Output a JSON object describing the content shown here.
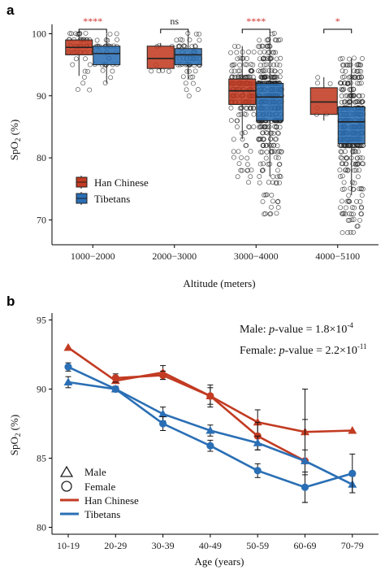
{
  "colors": {
    "han": "#c23b22",
    "tibetan": "#2a6fb5",
    "sig_red": "#d0312d",
    "sig_ns": "#222222"
  },
  "chart_data": [
    {
      "panel_label": "a",
      "type": "box",
      "xlabel": "Altitude (meters)",
      "ylabel_main": "SpO",
      "ylabel_sub": "2",
      "ylabel_unit": " (%)",
      "ylim": [
        66,
        101.5
      ],
      "yticks": [
        70,
        80,
        90,
        100
      ],
      "categories": [
        "1000−2000",
        "2000−3000",
        "3000−4000",
        "4000−5100"
      ],
      "significance": [
        "****",
        "ns",
        "****",
        "*"
      ],
      "legend": {
        "placement": "bottom-left",
        "entries": [
          "Han Chinese",
          "Tibetans"
        ]
      },
      "series": [
        {
          "name": "Han Chinese",
          "color": "#c23b22",
          "boxes": [
            {
              "q1": 96.6,
              "median": 97.8,
              "q3": 99.0,
              "whisker_low": 93.2,
              "whisker_high": 100,
              "points_min": 90,
              "points_max": 100,
              "n": 55
            },
            {
              "q1": 94.4,
              "median": 96.0,
              "q3": 98.0,
              "whisker_low": 94.0,
              "whisker_high": 98.5,
              "points_min": 94,
              "points_max": 98,
              "n": 8
            },
            {
              "q1": 88.6,
              "median": 90.8,
              "q3": 92.7,
              "whisker_low": 83.0,
              "whisker_high": 98.0,
              "points_min": 76,
              "points_max": 98,
              "n": 200
            },
            {
              "q1": 87.0,
              "median": 89.0,
              "q3": 91.3,
              "whisker_low": 86.0,
              "whisker_high": 93.0,
              "points_min": 86,
              "points_max": 93,
              "n": 6
            }
          ]
        },
        {
          "name": "Tibetans",
          "color": "#2a6fb5",
          "boxes": [
            {
              "q1": 95.0,
              "median": 96.8,
              "q3": 98.0,
              "whisker_low": 92.0,
              "whisker_high": 100,
              "points_min": 92,
              "points_max": 100,
              "n": 35
            },
            {
              "q1": 95.0,
              "median": 96.6,
              "q3": 97.6,
              "whisker_low": 92.6,
              "whisker_high": 100,
              "points_min": 90,
              "points_max": 100,
              "n": 60
            },
            {
              "q1": 86.0,
              "median": 89.8,
              "q3": 92.0,
              "whisker_low": 77.0,
              "whisker_high": 100,
              "points_min": 70.5,
              "points_max": 100,
              "n": 420
            },
            {
              "q1": 82.3,
              "median": 85.8,
              "q3": 88.2,
              "whisker_low": 74.0,
              "whisker_high": 96.0,
              "points_min": 67.5,
              "points_max": 96,
              "n": 420
            }
          ]
        }
      ]
    },
    {
      "panel_label": "b",
      "type": "line",
      "xlabel": "Age (years)",
      "ylabel_main": "SpO",
      "ylabel_sub": "2",
      "ylabel_unit": " (%)",
      "ylim": [
        79.5,
        95.5
      ],
      "yticks": [
        80,
        85,
        90,
        95
      ],
      "categories": [
        "10-19",
        "20-29",
        "30-39",
        "40-49",
        "50-59",
        "60-69",
        "70-79"
      ],
      "annotations": [
        {
          "prefix": "Male: ",
          "italic": "p",
          "middle": "-value = 1.8×10",
          "sup": "-4"
        },
        {
          "prefix": "Female: ",
          "italic": "p",
          "middle": "-value = 2.2×10",
          "sup": "-11"
        }
      ],
      "legend": {
        "placement": "bottom-left",
        "entries": [
          "Male",
          "Female",
          "Han Chinese",
          "Tibetans"
        ]
      },
      "series": [
        {
          "name": "Han Chinese Male",
          "group": "Han Chinese",
          "sex": "Male",
          "color": "#c23b22",
          "values": [
            93.0,
            90.6,
            91.2,
            89.5,
            87.6,
            86.9,
            87.0
          ],
          "err": [
            null,
            null,
            0.5,
            0.8,
            0.9,
            3.1,
            null
          ]
        },
        {
          "name": "Han Chinese Female",
          "group": "Han Chinese",
          "sex": "Female",
          "color": "#c23b22",
          "values": [
            null,
            90.8,
            91.0,
            89.5,
            86.6,
            84.8,
            null
          ],
          "err": [
            null,
            0.3,
            0.3,
            0.6,
            1.0,
            3.0,
            null
          ]
        },
        {
          "name": "Tibetans Male",
          "group": "Tibetans",
          "sex": "Male",
          "color": "#2a6fb5",
          "values": [
            90.5,
            90.0,
            88.2,
            87.0,
            86.1,
            84.8,
            83.1
          ],
          "err": [
            0.4,
            0.2,
            0.5,
            0.4,
            0.5,
            0.8,
            0.6
          ]
        },
        {
          "name": "Tibetans Female",
          "group": "Tibetans",
          "sex": "Female",
          "color": "#2a6fb5",
          "values": [
            91.6,
            90.0,
            87.5,
            85.9,
            84.1,
            82.9,
            83.9
          ],
          "err": [
            0.3,
            0.2,
            0.5,
            0.4,
            0.5,
            1.1,
            1.4
          ]
        }
      ]
    }
  ]
}
